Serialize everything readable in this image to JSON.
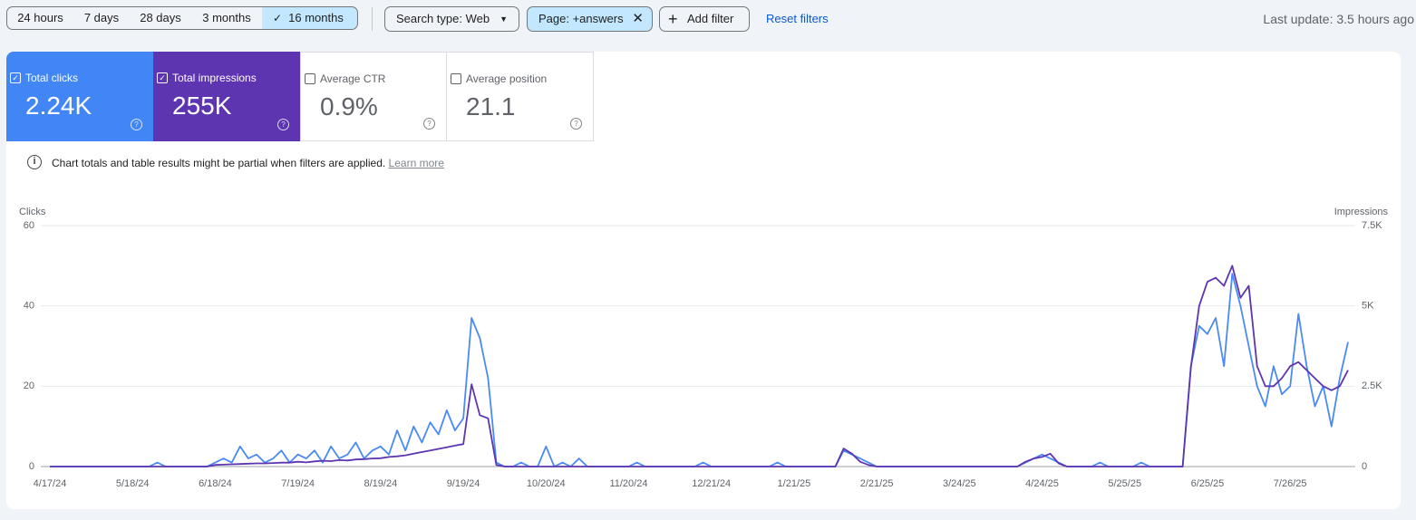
{
  "toolbar": {
    "date_ranges": [
      "24 hours",
      "7 days",
      "28 days",
      "3 months",
      "16 months"
    ],
    "search_type": "Search type: Web",
    "page_filter": "Page: +answers",
    "add_filter": "Add filter",
    "reset": "Reset filters",
    "last_update": "Last update: 3.5 hours ago"
  },
  "metrics": [
    {
      "label": "Total clicks",
      "value": "2.24K"
    },
    {
      "label": "Total impressions",
      "value": "255K"
    },
    {
      "label": "Average CTR",
      "value": "0.9%"
    },
    {
      "label": "Average position",
      "value": "21.1"
    }
  ],
  "notice": {
    "text": "Chart totals and table results might be partial when filters are applied.",
    "link": "Learn more"
  },
  "chart_data": {
    "type": "line",
    "categories": [
      "4/17/24",
      null,
      null,
      null,
      null,
      null,
      null,
      null,
      null,
      null,
      "5/18/24",
      null,
      null,
      null,
      null,
      null,
      null,
      null,
      null,
      null,
      "6/18/24",
      null,
      null,
      null,
      null,
      null,
      null,
      null,
      null,
      null,
      "7/19/24",
      null,
      null,
      null,
      null,
      null,
      null,
      null,
      null,
      null,
      "8/19/24",
      null,
      null,
      null,
      null,
      null,
      null,
      null,
      null,
      null,
      "9/19/24",
      null,
      null,
      null,
      null,
      null,
      null,
      null,
      null,
      null,
      "10/20/24",
      null,
      null,
      null,
      null,
      null,
      null,
      null,
      null,
      null,
      "11/20/24",
      null,
      null,
      null,
      null,
      null,
      null,
      null,
      null,
      null,
      "12/21/24",
      null,
      null,
      null,
      null,
      null,
      null,
      null,
      null,
      null,
      "1/21/25",
      null,
      null,
      null,
      null,
      null,
      null,
      null,
      null,
      null,
      "2/21/25",
      null,
      null,
      null,
      null,
      null,
      null,
      null,
      null,
      null,
      "3/24/25",
      null,
      null,
      null,
      null,
      null,
      null,
      null,
      null,
      null,
      "4/24/25",
      null,
      null,
      null,
      null,
      null,
      null,
      null,
      null,
      null,
      "5/25/25",
      null,
      null,
      null,
      null,
      null,
      null,
      null,
      null,
      null,
      "6/25/25",
      null,
      null,
      null,
      null,
      null,
      null,
      null,
      null,
      null,
      "7/26/25",
      null,
      null,
      null,
      null,
      null,
      null,
      null
    ],
    "series": [
      {
        "name": "Clicks",
        "color": "#4a8af4",
        "values": [
          0,
          0,
          0,
          0,
          0,
          0,
          0,
          0,
          0,
          0,
          0,
          0,
          0,
          1,
          0,
          0,
          0,
          0,
          0,
          0,
          1,
          2,
          1,
          5,
          2,
          3,
          1,
          2,
          4,
          1,
          3,
          2,
          4,
          1,
          5,
          2,
          3,
          6,
          2,
          4,
          5,
          3,
          9,
          4,
          10,
          6,
          11,
          8,
          14,
          9,
          12,
          37,
          32,
          22,
          1,
          0,
          0,
          1,
          0,
          0,
          5,
          0,
          1,
          0,
          2,
          0,
          0,
          0,
          0,
          0,
          0,
          1,
          0,
          0,
          0,
          0,
          0,
          0,
          0,
          1,
          0,
          0,
          0,
          0,
          0,
          0,
          0,
          0,
          1,
          0,
          0,
          0,
          0,
          0,
          0,
          0,
          4,
          3,
          2,
          1,
          0,
          0,
          0,
          0,
          0,
          0,
          0,
          0,
          0,
          0,
          0,
          0,
          0,
          0,
          0,
          0,
          0,
          0,
          1,
          2,
          3,
          2,
          1,
          0,
          0,
          0,
          0,
          1,
          0,
          0,
          0,
          0,
          1,
          0,
          0,
          0,
          0,
          0,
          25,
          35,
          33,
          37,
          25,
          48,
          40,
          30,
          20,
          15,
          25,
          18,
          20,
          38,
          25,
          15,
          20,
          10,
          22,
          31
        ]
      },
      {
        "name": "Impressions",
        "color": "#5e35b1",
        "axis": "y2",
        "values": [
          0,
          0,
          0,
          0,
          0,
          0,
          0,
          0,
          0,
          0,
          0,
          0,
          0,
          0,
          0,
          0,
          0,
          0,
          0,
          0,
          50,
          60,
          70,
          80,
          90,
          100,
          100,
          110,
          120,
          120,
          150,
          130,
          160,
          180,
          170,
          200,
          190,
          220,
          230,
          250,
          260,
          300,
          320,
          350,
          400,
          450,
          500,
          550,
          600,
          650,
          700,
          2560,
          1600,
          1500,
          50,
          0,
          0,
          0,
          0,
          0,
          0,
          0,
          0,
          0,
          0,
          0,
          0,
          0,
          0,
          0,
          0,
          0,
          0,
          0,
          0,
          0,
          0,
          0,
          0,
          0,
          0,
          0,
          0,
          0,
          0,
          0,
          0,
          0,
          0,
          0,
          0,
          0,
          0,
          0,
          0,
          0,
          560,
          400,
          150,
          50,
          0,
          0,
          0,
          0,
          0,
          0,
          0,
          0,
          0,
          0,
          0,
          0,
          0,
          0,
          0,
          0,
          0,
          0,
          150,
          250,
          300,
          400,
          100,
          0,
          0,
          0,
          0,
          0,
          0,
          0,
          0,
          0,
          0,
          0,
          0,
          0,
          0,
          0,
          3100,
          5000,
          5750,
          5875,
          5625,
          6250,
          5250,
          5625,
          3125,
          2500,
          2500,
          2750,
          3125,
          3250,
          3000,
          2750,
          2500,
          2375,
          2500,
          3000
        ]
      }
    ],
    "ylim": [
      0,
      60
    ],
    "yticks": [
      0,
      20,
      40,
      60
    ],
    "y2lim": [
      0,
      7500
    ],
    "y2ticks": [
      0,
      {
        "value": 2500,
        "label": "2.5K"
      },
      {
        "value": 5000,
        "label": "5K"
      },
      {
        "value": 7500,
        "label": "7.5K"
      }
    ],
    "grid": true
  }
}
